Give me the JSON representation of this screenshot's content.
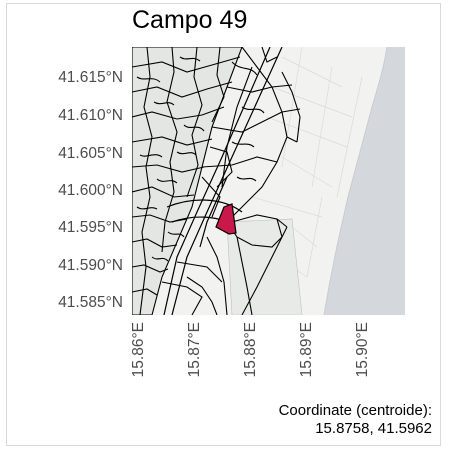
{
  "title": "Campo 49",
  "y_axis_labels": [
    "41.615°N",
    "41.610°N",
    "41.605°N",
    "41.600°N",
    "41.595°N",
    "41.590°N",
    "41.585°N"
  ],
  "x_axis_labels": [
    "15.86°E",
    "15.87°E",
    "15.88°E",
    "15.89°E",
    "15.90°E"
  ],
  "caption": {
    "line1": "Coordinate (centroide):",
    "line2": "15.8758, 41.5962"
  },
  "colors": {
    "highlight": "#c9184a",
    "sea": "#d4d8dc",
    "land": "#f2f2f0",
    "parcel_fill": "#e4e6e3",
    "boundary": "#000000"
  }
}
